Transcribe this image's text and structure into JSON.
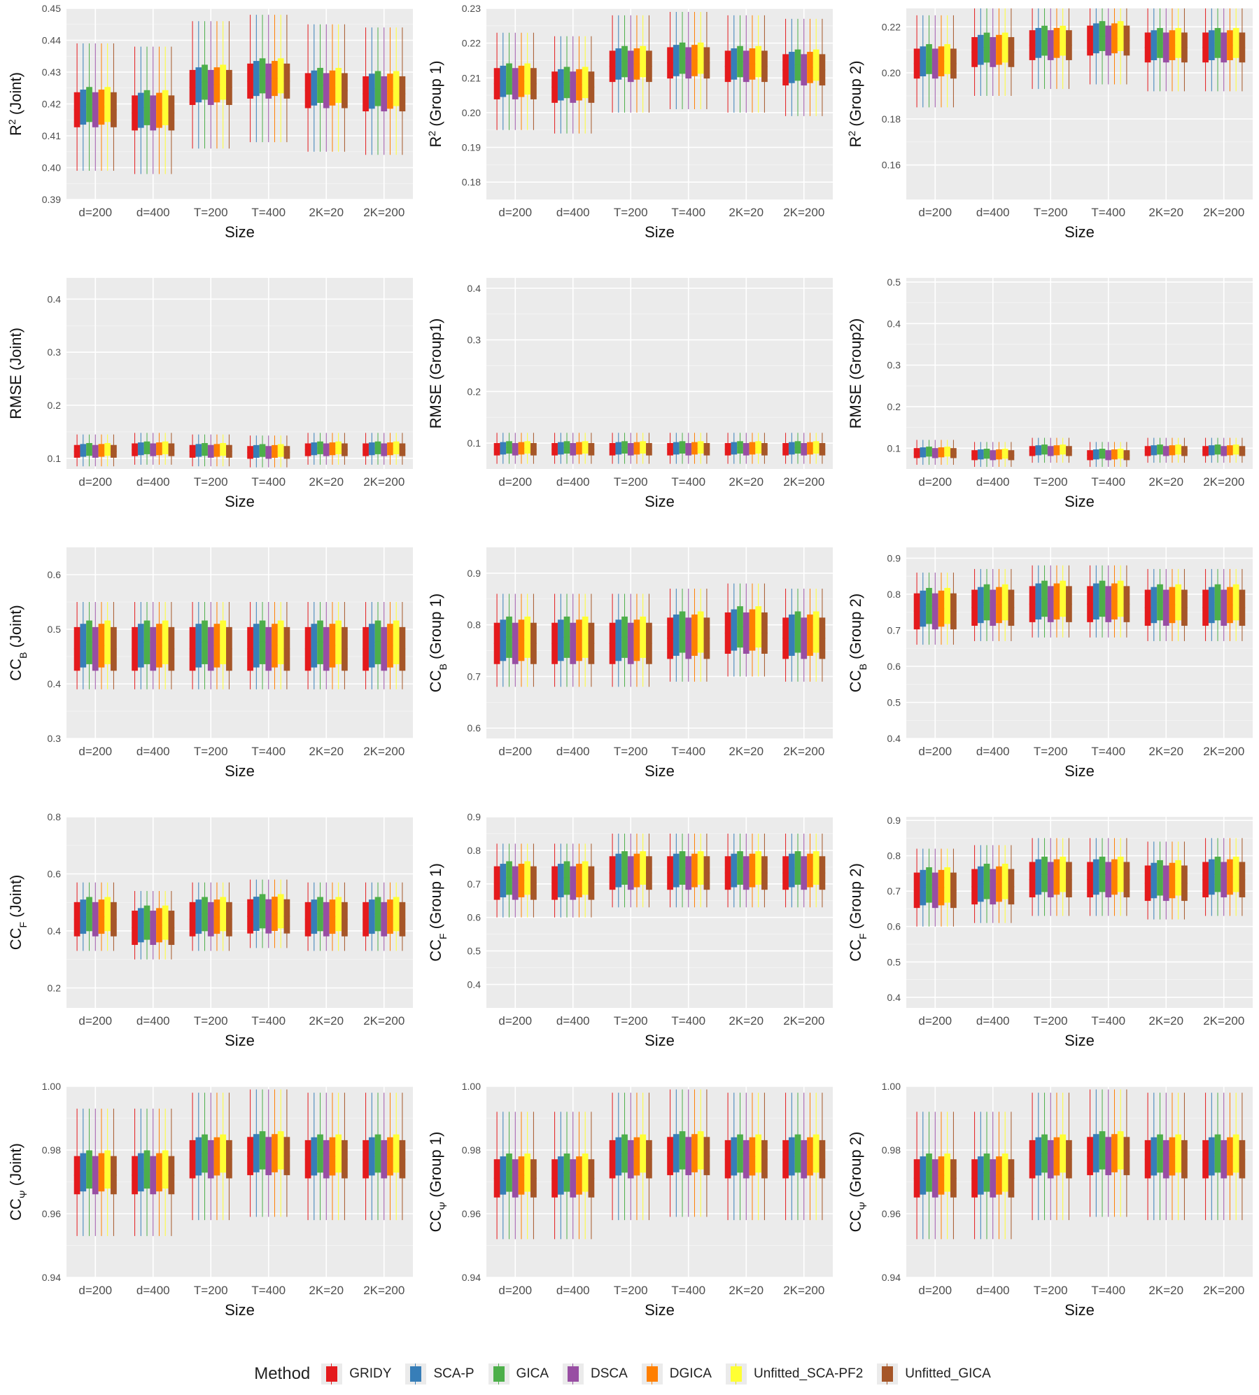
{
  "methods": [
    {
      "name": "GRIDY",
      "color": "#e41a1c"
    },
    {
      "name": "SCA-P",
      "color": "#377eb8"
    },
    {
      "name": "GICA",
      "color": "#4daf4a"
    },
    {
      "name": "DSCA",
      "color": "#984ea3"
    },
    {
      "name": "DGICA",
      "color": "#ff7f00"
    },
    {
      "name": "Unfitted_SCA-PF2",
      "color": "#ffff33"
    },
    {
      "name": "Unfitted_GICA",
      "color": "#a65628"
    }
  ],
  "legend": {
    "title": "Method"
  },
  "chart_data": [
    {
      "type": "box",
      "title": "",
      "xlabel": "Size",
      "ylabel_main": "R",
      "ylabel_sup": "2",
      "ylabel_rest": " (Joint)",
      "categories": [
        "d=200",
        "d=400",
        "T=200",
        "T=400",
        "2K=20",
        "2K=200"
      ],
      "ylim": [
        0.39,
        0.45
      ],
      "yticks": [
        0.39,
        0.4,
        0.41,
        0.42,
        0.43,
        0.44,
        0.45
      ],
      "medians": [
        0.419,
        0.418,
        0.426,
        0.428,
        0.425,
        0.424
      ],
      "iqr_half": 0.0055,
      "whisker_half": 0.02
    },
    {
      "type": "box",
      "title": "",
      "xlabel": "Size",
      "ylabel_main": "R",
      "ylabel_sup": "2",
      "ylabel_rest": " (Group 1)",
      "categories": [
        "d=200",
        "d=400",
        "T=200",
        "T=400",
        "2K=20",
        "2K=200"
      ],
      "ylim": [
        0.175,
        0.23
      ],
      "yticks": [
        0.18,
        0.19,
        0.2,
        0.21,
        0.22,
        0.23
      ],
      "medians": [
        0.209,
        0.208,
        0.214,
        0.215,
        0.214,
        0.213
      ],
      "iqr_half": 0.0045,
      "whisker_half": 0.014
    },
    {
      "type": "box",
      "title": "",
      "xlabel": "Size",
      "ylabel_main": "R",
      "ylabel_sup": "2",
      "ylabel_rest": " (Group 2)",
      "categories": [
        "d=200",
        "d=400",
        "T=200",
        "T=400",
        "2K=20",
        "2K=200"
      ],
      "ylim": [
        0.145,
        0.228
      ],
      "yticks": [
        0.16,
        0.18,
        0.2,
        0.22
      ],
      "medians": [
        0.205,
        0.21,
        0.213,
        0.215,
        0.212,
        0.212
      ],
      "iqr_half": 0.0065,
      "whisker_half": 0.02
    },
    {
      "type": "box",
      "title": "",
      "xlabel": "Size",
      "ylabel_main": "RMSE (Joint)",
      "ylabel_sup": "",
      "ylabel_rest": "",
      "categories": [
        "d=200",
        "d=400",
        "T=200",
        "T=400",
        "2K=20",
        "2K=200"
      ],
      "ylim": [
        0.08,
        0.44
      ],
      "yticks": [
        0.1,
        0.2,
        0.3,
        0.4
      ],
      "medians": [
        0.115,
        0.118,
        0.115,
        0.113,
        0.118,
        0.118
      ],
      "iqr_half": 0.012,
      "whisker_half": 0.03
    },
    {
      "type": "box",
      "title": "",
      "xlabel": "Size",
      "ylabel_main": "RMSE (Group1)",
      "ylabel_sup": "",
      "ylabel_rest": "",
      "categories": [
        "d=200",
        "d=400",
        "T=200",
        "T=400",
        "2K=20",
        "2K=200"
      ],
      "ylim": [
        0.05,
        0.42
      ],
      "yticks": [
        0.1,
        0.2,
        0.3,
        0.4
      ],
      "medians": [
        0.09,
        0.09,
        0.09,
        0.09,
        0.09,
        0.09
      ],
      "iqr_half": 0.012,
      "whisker_half": 0.03
    },
    {
      "type": "box",
      "title": "",
      "xlabel": "Size",
      "ylabel_main": "RMSE (Group2)",
      "ylabel_sup": "",
      "ylabel_rest": "",
      "categories": [
        "d=200",
        "d=400",
        "T=200",
        "T=400",
        "2K=20",
        "2K=200"
      ],
      "ylim": [
        0.05,
        0.51
      ],
      "yticks": [
        0.1,
        0.2,
        0.3,
        0.4,
        0.5
      ],
      "medians": [
        0.09,
        0.085,
        0.095,
        0.085,
        0.095,
        0.095
      ],
      "iqr_half": 0.012,
      "whisker_half": 0.03
    },
    {
      "type": "box",
      "title": "",
      "xlabel": "Size",
      "ylabel_main": "CC",
      "ylabel_sub": "B",
      "ylabel_rest": " (Joint)",
      "categories": [
        "d=200",
        "d=400",
        "T=200",
        "T=400",
        "2K=20",
        "2K=200"
      ],
      "ylim": [
        0.3,
        0.65
      ],
      "yticks": [
        0.3,
        0.4,
        0.5,
        0.6
      ],
      "medians": [
        0.47,
        0.47,
        0.47,
        0.47,
        0.47,
        0.47
      ],
      "iqr_half": 0.04,
      "whisker_half": 0.08
    },
    {
      "type": "box",
      "title": "",
      "xlabel": "Size",
      "ylabel_main": "CC",
      "ylabel_sub": "B",
      "ylabel_rest": " (Group 1)",
      "categories": [
        "d=200",
        "d=400",
        "T=200",
        "T=400",
        "2K=20",
        "2K=200"
      ],
      "ylim": [
        0.58,
        0.95
      ],
      "yticks": [
        0.6,
        0.7,
        0.8,
        0.9
      ],
      "medians": [
        0.77,
        0.77,
        0.77,
        0.78,
        0.79,
        0.78
      ],
      "iqr_half": 0.04,
      "whisker_half": 0.09
    },
    {
      "type": "box",
      "title": "",
      "xlabel": "Size",
      "ylabel_main": "CC",
      "ylabel_sub": "B",
      "ylabel_rest": " (Group 2)",
      "categories": [
        "d=200",
        "d=400",
        "T=200",
        "T=400",
        "2K=20",
        "2K=200"
      ],
      "ylim": [
        0.4,
        0.93
      ],
      "yticks": [
        0.4,
        0.5,
        0.6,
        0.7,
        0.8,
        0.9
      ],
      "medians": [
        0.76,
        0.77,
        0.78,
        0.78,
        0.77,
        0.77
      ],
      "iqr_half": 0.05,
      "whisker_half": 0.1
    },
    {
      "type": "box",
      "title": "",
      "xlabel": "Size",
      "ylabel_main": "CC",
      "ylabel_sub": "F",
      "ylabel_rest": " (Joint)",
      "categories": [
        "d=200",
        "d=400",
        "T=200",
        "T=400",
        "2K=20",
        "2K=200"
      ],
      "ylim": [
        0.13,
        0.8
      ],
      "yticks": [
        0.2,
        0.4,
        0.6,
        0.8
      ],
      "medians": [
        0.45,
        0.42,
        0.45,
        0.46,
        0.45,
        0.45
      ],
      "iqr_half": 0.06,
      "whisker_half": 0.12
    },
    {
      "type": "box",
      "title": "",
      "xlabel": "Size",
      "ylabel_main": "CC",
      "ylabel_sub": "F",
      "ylabel_rest": " (Group 1)",
      "categories": [
        "d=200",
        "d=400",
        "T=200",
        "T=400",
        "2K=20",
        "2K=200"
      ],
      "ylim": [
        0.33,
        0.9
      ],
      "yticks": [
        0.4,
        0.5,
        0.6,
        0.7,
        0.8,
        0.9
      ],
      "medians": [
        0.71,
        0.71,
        0.74,
        0.74,
        0.74,
        0.74
      ],
      "iqr_half": 0.05,
      "whisker_half": 0.11
    },
    {
      "type": "box",
      "title": "",
      "xlabel": "Size",
      "ylabel_main": "CC",
      "ylabel_sub": "F",
      "ylabel_rest": " (Group 2)",
      "categories": [
        "d=200",
        "d=400",
        "T=200",
        "T=400",
        "2K=20",
        "2K=200"
      ],
      "ylim": [
        0.37,
        0.91
      ],
      "yticks": [
        0.4,
        0.5,
        0.6,
        0.7,
        0.8,
        0.9
      ],
      "medians": [
        0.71,
        0.72,
        0.74,
        0.74,
        0.73,
        0.74
      ],
      "iqr_half": 0.05,
      "whisker_half": 0.11
    },
    {
      "type": "box",
      "title": "",
      "xlabel": "Size",
      "ylabel_main": "CC",
      "ylabel_sub": "Ψ",
      "ylabel_rest": " (Joint)",
      "categories": [
        "d=200",
        "d=400",
        "T=200",
        "T=400",
        "2K=20",
        "2K=200"
      ],
      "ylim": [
        0.94,
        1.0
      ],
      "yticks": [
        0.94,
        0.96,
        0.98,
        1.0
      ],
      "medians": [
        0.973,
        0.973,
        0.978,
        0.979,
        0.978,
        0.978
      ],
      "iqr_half": 0.006,
      "whisker_half": 0.02
    },
    {
      "type": "box",
      "title": "",
      "xlabel": "Size",
      "ylabel_main": "CC",
      "ylabel_sub": "Ψ",
      "ylabel_rest": " (Group 1)",
      "categories": [
        "d=200",
        "d=400",
        "T=200",
        "T=400",
        "2K=20",
        "2K=200"
      ],
      "ylim": [
        0.94,
        1.0
      ],
      "yticks": [
        0.94,
        0.96,
        0.98,
        1.0
      ],
      "medians": [
        0.972,
        0.972,
        0.978,
        0.979,
        0.978,
        0.978
      ],
      "iqr_half": 0.006,
      "whisker_half": 0.02
    },
    {
      "type": "box",
      "title": "",
      "xlabel": "Size",
      "ylabel_main": "CC",
      "ylabel_sub": "Ψ",
      "ylabel_rest": " (Group 2)",
      "categories": [
        "d=200",
        "d=400",
        "T=200",
        "T=400",
        "2K=20",
        "2K=200"
      ],
      "ylim": [
        0.94,
        1.0
      ],
      "yticks": [
        0.94,
        0.96,
        0.98,
        1.0
      ],
      "medians": [
        0.972,
        0.972,
        0.978,
        0.979,
        0.978,
        0.978
      ],
      "iqr_half": 0.006,
      "whisker_half": 0.02
    }
  ]
}
